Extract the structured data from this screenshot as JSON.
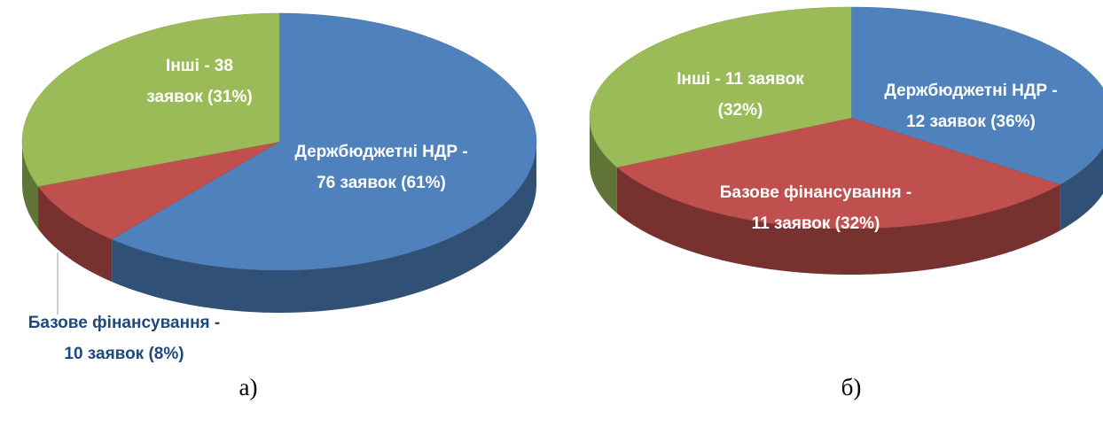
{
  "chart_data": [
    {
      "type": "pie3d",
      "categories": [
        "Держбюджетні НДР",
        "Базове фінансування",
        "Інші"
      ],
      "values": [
        76,
        10,
        38
      ],
      "labels": [
        [
          "Держбюджетні НДР -",
          "76 заявок (61%)"
        ],
        [
          "Базове фінансування -",
          "10 заявок (8%)"
        ],
        [
          "Інші - 38",
          "заявок (31%)"
        ]
      ],
      "colors": [
        "#4f81bd",
        "#c0504d",
        "#9bbb59"
      ],
      "caption": "а)"
    },
    {
      "type": "pie3d",
      "categories": [
        "Держбюджетні НДР",
        "Базове фінансування",
        "Інші"
      ],
      "values": [
        12,
        11,
        11
      ],
      "labels": [
        [
          "Держбюджетні НДР -",
          "12 заявок (36%)"
        ],
        [
          "Базове фінансування -",
          "11 заявок (32%)"
        ],
        [
          "Інші - 11 заявок",
          "(32%)"
        ]
      ],
      "colors": [
        "#4f81bd",
        "#c0504d",
        "#9bbb59"
      ],
      "caption": "б)"
    }
  ]
}
